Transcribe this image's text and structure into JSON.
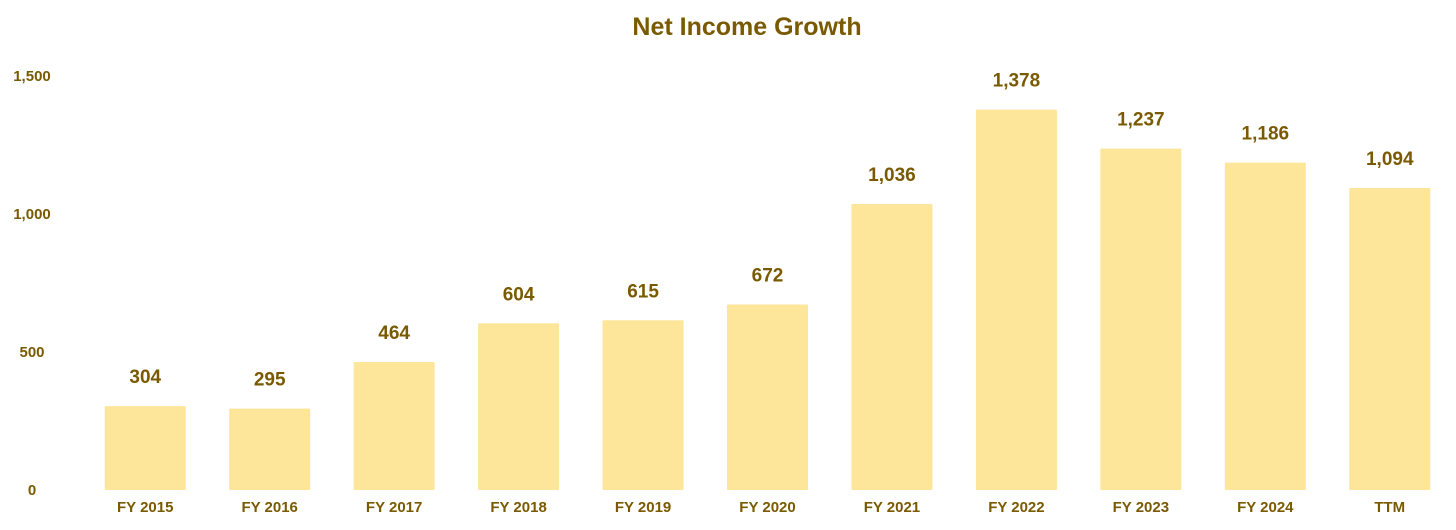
{
  "colors": {
    "bar": "#fde59a",
    "text": "#7a5a00",
    "background": "#ffffff"
  },
  "chart_data": {
    "type": "bar",
    "title": "Net Income Growth",
    "xlabel": "",
    "ylabel": "",
    "ylim": [
      0,
      1500
    ],
    "y_ticks": [
      0,
      500,
      1000,
      1500
    ],
    "y_tick_labels": [
      "0",
      "500",
      "1,000",
      "1,500"
    ],
    "grid": false,
    "legend": "none",
    "categories": [
      "FY 2015",
      "FY 2016",
      "FY 2017",
      "FY 2018",
      "FY 2019",
      "FY 2020",
      "FY 2021",
      "FY 2022",
      "FY 2023",
      "FY 2024",
      "TTM"
    ],
    "values": [
      304,
      295,
      464,
      604,
      615,
      672,
      1036,
      1378,
      1237,
      1186,
      1094
    ],
    "value_labels": [
      "304",
      "295",
      "464",
      "604",
      "615",
      "672",
      "1,036",
      "1,378",
      "1,237",
      "1,186",
      "1,094"
    ]
  }
}
